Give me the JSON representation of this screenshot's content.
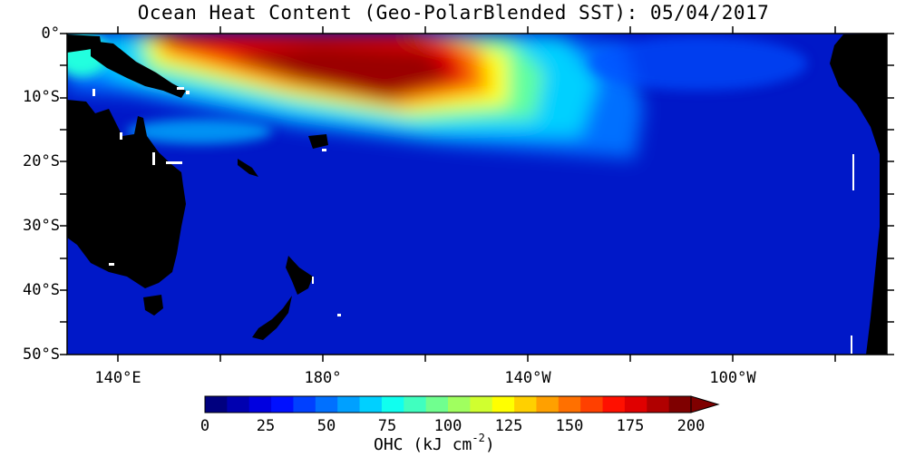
{
  "title": "Ocean Heat Content (Geo-PolarBlended SST): 05/04/2017",
  "map": {
    "lat_labels": [
      "0°",
      "10°S",
      "20°S",
      "30°S",
      "40°S",
      "50°S"
    ],
    "lon_labels": [
      "140°E",
      "180°",
      "140°W",
      "100°W"
    ],
    "colors": {
      "land": "#000000",
      "frame": "#000000",
      "background": "#ffffff"
    }
  },
  "colorbar": {
    "ticks": [
      "0",
      "25",
      "50",
      "75",
      "100",
      "125",
      "150",
      "175",
      "200"
    ],
    "min": 0,
    "max": 200,
    "colors": [
      "#00007f",
      "#0000b0",
      "#0000e0",
      "#0010ff",
      "#0040ff",
      "#0070ff",
      "#00a0ff",
      "#00d0ff",
      "#10ffef",
      "#40ffbf",
      "#70ff8f",
      "#a0ff5f",
      "#d0ff2f",
      "#ffff00",
      "#ffd000",
      "#ffa000",
      "#ff7000",
      "#ff4000",
      "#ff1000",
      "#e00000",
      "#b00000",
      "#7f0000"
    ],
    "label_text": "OHC (kJ cm",
    "label_exp": "-2",
    "label_close": ")"
  }
}
